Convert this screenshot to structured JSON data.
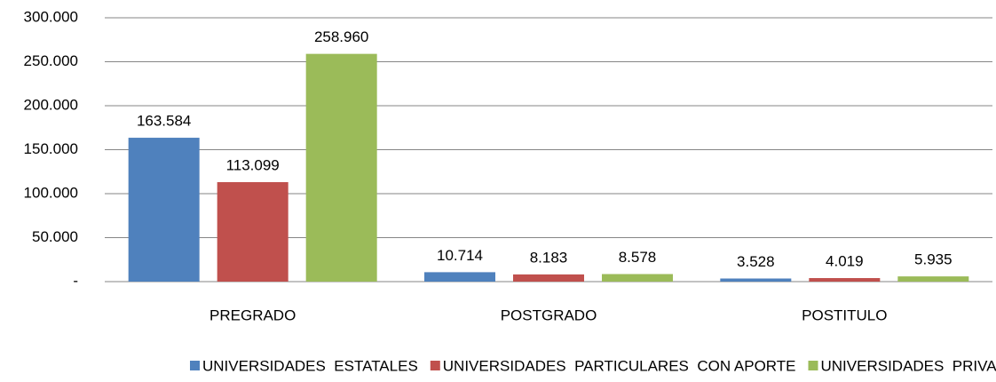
{
  "chart_data": {
    "type": "bar",
    "categories": [
      "PREGRADO",
      "POSTGRADO",
      "POSTITULO"
    ],
    "series": [
      {
        "name": "UNIVERSIDADES  ESTATALES",
        "color": "#4f81bd",
        "values": [
          163584,
          10714,
          3528
        ],
        "value_labels": [
          "163.584",
          "10.714",
          "3.528"
        ]
      },
      {
        "name": "UNIVERSIDADES  PARTICULARES  CON APORTE",
        "color": "#c0504d",
        "values": [
          113099,
          8183,
          4019
        ],
        "value_labels": [
          "113.099",
          "8.183",
          "4.019"
        ]
      },
      {
        "name": "UNIVERSIDADES  PRIVADAS",
        "color": "#9bbb59",
        "values": [
          258960,
          8578,
          5935
        ],
        "value_labels": [
          "258.960",
          "8.578",
          "5.935"
        ]
      }
    ],
    "ylim": [
      0,
      300000
    ],
    "yticks": [
      {
        "value": 0,
        "label": "-"
      },
      {
        "value": 50000,
        "label": "50.000"
      },
      {
        "value": 100000,
        "label": "100.000"
      },
      {
        "value": 150000,
        "label": "150.000"
      },
      {
        "value": 200000,
        "label": "200.000"
      },
      {
        "value": 250000,
        "label": "250.000"
      },
      {
        "value": 300000,
        "label": "300.000"
      }
    ],
    "grid": true,
    "legend": "bottom"
  }
}
